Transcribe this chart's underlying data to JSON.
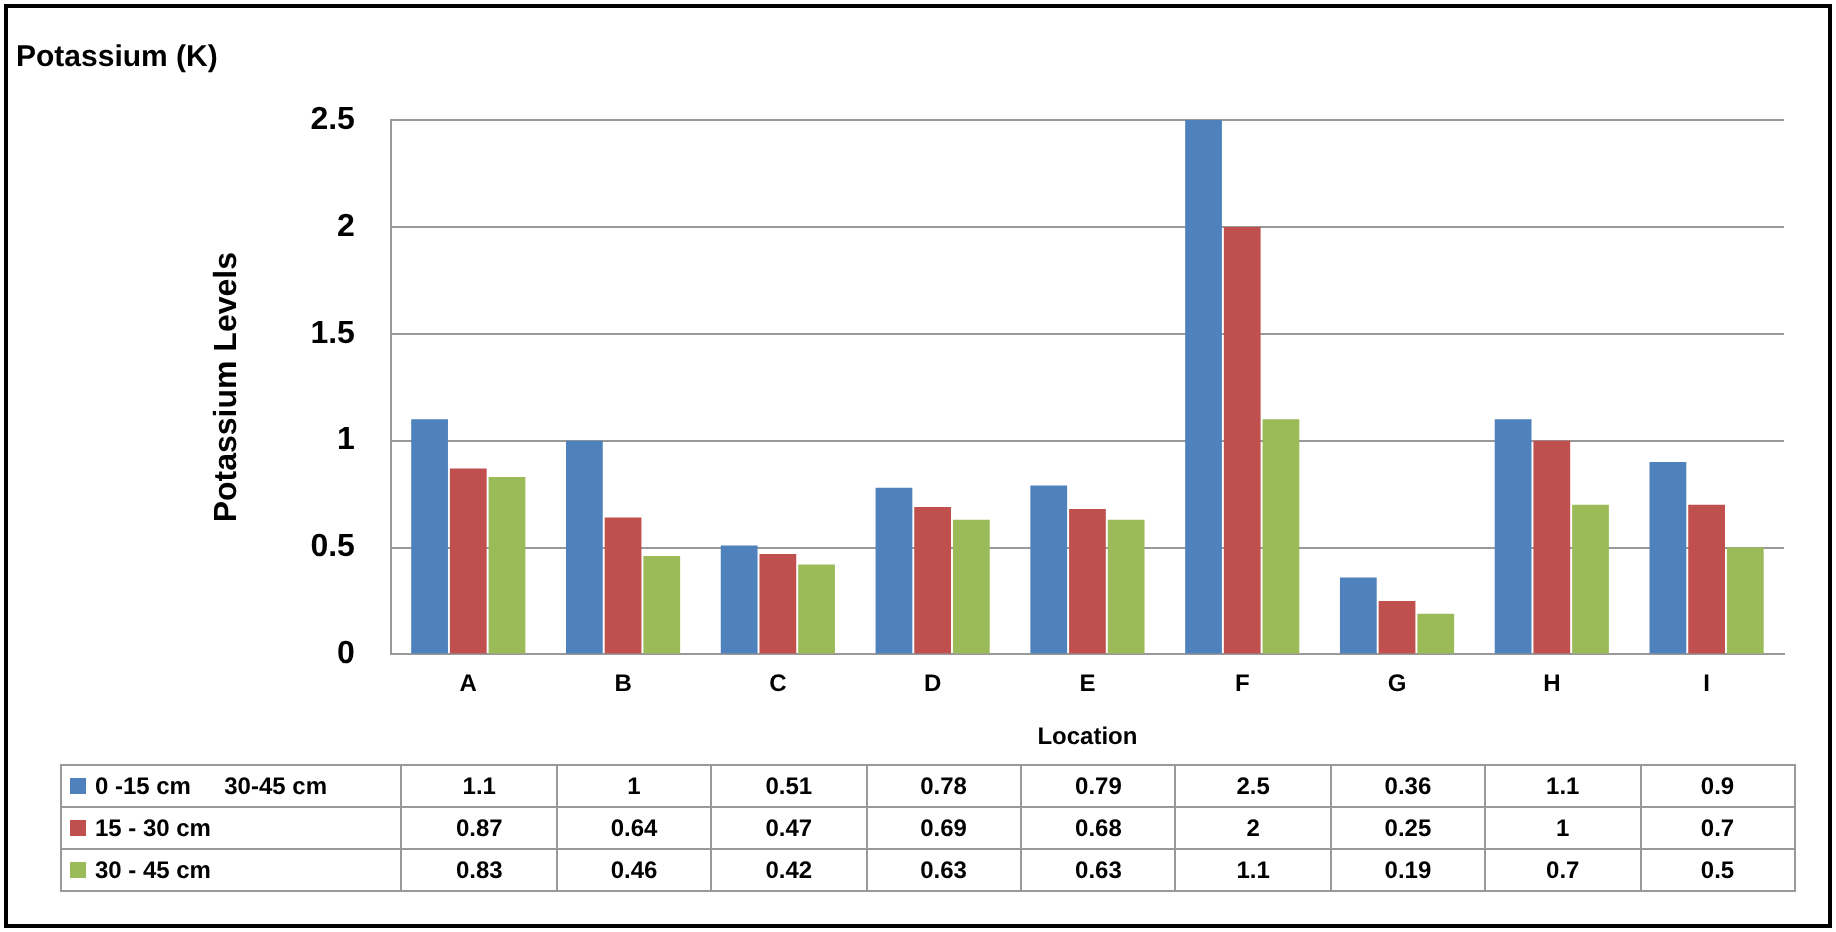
{
  "chart_data": {
    "type": "bar",
    "title": "Potassium (K)",
    "xlabel": "Location",
    "ylabel": "Potassium Levels",
    "categories": [
      "A",
      "B",
      "C",
      "D",
      "E",
      "F",
      "G",
      "H",
      "I"
    ],
    "series": [
      {
        "name": "0 -15 cm     30-45 cm",
        "color": "#4f81bd",
        "values": [
          1.1,
          1,
          0.51,
          0.78,
          0.79,
          2.5,
          0.36,
          1.1,
          0.9
        ]
      },
      {
        "name": "15 - 30 cm",
        "color": "#c0504d",
        "values": [
          0.87,
          0.64,
          0.47,
          0.69,
          0.68,
          2,
          0.25,
          1,
          0.7
        ]
      },
      {
        "name": "30 - 45 cm",
        "color": "#9bbb59",
        "values": [
          0.83,
          0.46,
          0.42,
          0.63,
          0.63,
          1.1,
          0.19,
          0.7,
          0.5
        ]
      }
    ],
    "ylim": [
      0,
      2.5
    ],
    "yticks": [
      0,
      0.5,
      1,
      1.5,
      2,
      2.5
    ],
    "grid": "y",
    "legend": "bottom",
    "data_labels": true
  }
}
